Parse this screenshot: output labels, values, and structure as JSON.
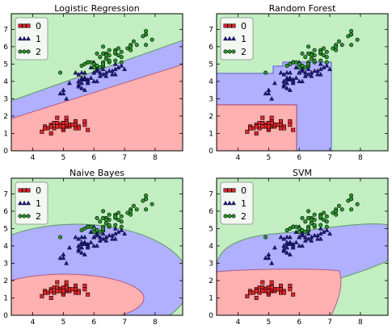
{
  "chart_data": [
    {
      "type": "scatter",
      "title": "Logistic Regression",
      "xlim": [
        3.3,
        8.9
      ],
      "ylim": [
        0,
        7.9
      ],
      "xticks": [
        "4",
        "5",
        "6",
        "7",
        "8"
      ],
      "yticks": [
        "0",
        "1",
        "2",
        "3",
        "4",
        "5",
        "6",
        "7"
      ],
      "legend": {
        "position": "top-left",
        "entries": [
          "0",
          "1",
          "2"
        ]
      },
      "decision_regions": [
        "linear boundaries"
      ]
    },
    {
      "type": "scatter",
      "title": "Random Forest",
      "xlim": [
        3.3,
        8.9
      ],
      "ylim": [
        0,
        7.9
      ],
      "xticks": [
        "4",
        "5",
        "6",
        "7",
        "8"
      ],
      "yticks": [
        "0",
        "1",
        "2",
        "3",
        "4",
        "5",
        "6",
        "7"
      ],
      "legend": {
        "position": "top-left",
        "entries": [
          "0",
          "1",
          "2"
        ]
      },
      "decision_regions": [
        "axis-aligned boxes"
      ]
    },
    {
      "type": "scatter",
      "title": "Naive Bayes",
      "xlim": [
        3.3,
        8.9
      ],
      "ylim": [
        0,
        7.9
      ],
      "xticks": [
        "4",
        "5",
        "6",
        "7",
        "8"
      ],
      "yticks": [
        "0",
        "1",
        "2",
        "3",
        "4",
        "5",
        "6",
        "7"
      ],
      "legend": {
        "position": "top-left",
        "entries": [
          "0",
          "1",
          "2"
        ]
      },
      "decision_regions": [
        "quadratic boundaries"
      ]
    },
    {
      "type": "scatter",
      "title": "SVM",
      "xlim": [
        3.3,
        8.9
      ],
      "ylim": [
        0,
        7.9
      ],
      "xticks": [
        "4",
        "5",
        "6",
        "7",
        "8"
      ],
      "yticks": [
        "0",
        "1",
        "2",
        "3",
        "4",
        "5",
        "6",
        "7"
      ],
      "legend": {
        "position": "top-left",
        "entries": [
          "0",
          "1",
          "2"
        ]
      },
      "decision_regions": [
        "rbf boundaries"
      ]
    }
  ],
  "series": [
    {
      "label": "0",
      "marker": "square",
      "color": "#e8262a",
      "points": [
        [
          5.1,
          1.4
        ],
        [
          4.9,
          1.4
        ],
        [
          4.7,
          1.3
        ],
        [
          4.6,
          1.5
        ],
        [
          5.0,
          1.4
        ],
        [
          5.4,
          1.7
        ],
        [
          4.6,
          1.4
        ],
        [
          5.0,
          1.5
        ],
        [
          4.4,
          1.4
        ],
        [
          4.9,
          1.5
        ],
        [
          5.4,
          1.5
        ],
        [
          4.8,
          1.6
        ],
        [
          4.8,
          1.4
        ],
        [
          4.3,
          1.1
        ],
        [
          5.8,
          1.2
        ],
        [
          5.7,
          1.5
        ],
        [
          5.4,
          1.3
        ],
        [
          5.1,
          1.4
        ],
        [
          5.7,
          1.7
        ],
        [
          5.1,
          1.5
        ],
        [
          5.4,
          1.7
        ],
        [
          5.1,
          1.5
        ],
        [
          4.6,
          1.0
        ],
        [
          5.1,
          1.7
        ],
        [
          4.8,
          1.9
        ],
        [
          5.0,
          1.6
        ],
        [
          5.0,
          1.6
        ],
        [
          5.2,
          1.5
        ],
        [
          5.2,
          1.4
        ],
        [
          4.7,
          1.6
        ],
        [
          4.8,
          1.6
        ],
        [
          5.4,
          1.5
        ],
        [
          5.2,
          1.5
        ],
        [
          5.5,
          1.4
        ],
        [
          4.9,
          1.5
        ],
        [
          5.0,
          1.2
        ],
        [
          5.5,
          1.3
        ],
        [
          4.9,
          1.4
        ],
        [
          4.4,
          1.3
        ],
        [
          5.1,
          1.5
        ],
        [
          5.0,
          1.3
        ],
        [
          4.5,
          1.3
        ],
        [
          4.4,
          1.3
        ],
        [
          5.0,
          1.6
        ],
        [
          5.1,
          1.9
        ],
        [
          4.8,
          1.4
        ],
        [
          5.1,
          1.6
        ],
        [
          4.6,
          1.4
        ],
        [
          5.3,
          1.5
        ],
        [
          5.0,
          1.4
        ]
      ]
    },
    {
      "label": "1",
      "marker": "triangle",
      "color": "#1e1a8a",
      "points": [
        [
          7.0,
          4.7
        ],
        [
          6.4,
          4.5
        ],
        [
          6.9,
          4.9
        ],
        [
          5.5,
          4.0
        ],
        [
          6.5,
          4.6
        ],
        [
          5.7,
          4.5
        ],
        [
          6.3,
          4.7
        ],
        [
          4.9,
          3.3
        ],
        [
          6.6,
          4.6
        ],
        [
          5.2,
          3.9
        ],
        [
          5.0,
          3.5
        ],
        [
          5.9,
          4.2
        ],
        [
          6.0,
          4.0
        ],
        [
          6.1,
          4.7
        ],
        [
          5.6,
          3.6
        ],
        [
          6.7,
          4.4
        ],
        [
          5.6,
          4.5
        ],
        [
          5.8,
          4.1
        ],
        [
          6.2,
          4.5
        ],
        [
          5.6,
          3.9
        ],
        [
          5.9,
          4.8
        ],
        [
          6.1,
          4.0
        ],
        [
          6.3,
          4.9
        ],
        [
          6.1,
          4.7
        ],
        [
          6.4,
          4.3
        ],
        [
          6.6,
          4.4
        ],
        [
          6.8,
          4.8
        ],
        [
          6.7,
          5.0
        ],
        [
          6.0,
          4.5
        ],
        [
          5.7,
          3.5
        ],
        [
          5.5,
          3.8
        ],
        [
          5.5,
          3.7
        ],
        [
          5.8,
          3.9
        ],
        [
          6.0,
          5.1
        ],
        [
          5.4,
          4.5
        ],
        [
          6.0,
          4.5
        ],
        [
          6.7,
          4.7
        ],
        [
          6.3,
          4.4
        ],
        [
          5.6,
          4.1
        ],
        [
          5.5,
          4.0
        ],
        [
          5.5,
          4.4
        ],
        [
          6.1,
          4.6
        ],
        [
          5.8,
          4.0
        ],
        [
          5.0,
          3.3
        ],
        [
          5.6,
          4.2
        ],
        [
          5.7,
          4.2
        ],
        [
          5.7,
          4.2
        ],
        [
          6.2,
          4.3
        ],
        [
          5.1,
          3.0
        ],
        [
          5.7,
          4.1
        ]
      ]
    },
    {
      "label": "2",
      "marker": "circle",
      "color": "#2a9a2a",
      "points": [
        [
          6.3,
          6.0
        ],
        [
          5.8,
          5.1
        ],
        [
          7.1,
          5.9
        ],
        [
          6.3,
          5.6
        ],
        [
          6.5,
          5.8
        ],
        [
          7.6,
          6.6
        ],
        [
          4.9,
          4.5
        ],
        [
          7.3,
          6.3
        ],
        [
          6.7,
          5.8
        ],
        [
          7.2,
          6.1
        ],
        [
          6.5,
          5.1
        ],
        [
          6.4,
          5.3
        ],
        [
          6.8,
          5.5
        ],
        [
          5.7,
          5.0
        ],
        [
          5.8,
          5.1
        ],
        [
          6.4,
          5.3
        ],
        [
          6.5,
          5.5
        ],
        [
          7.7,
          6.7
        ],
        [
          7.7,
          6.9
        ],
        [
          6.0,
          5.0
        ],
        [
          6.9,
          5.7
        ],
        [
          5.6,
          4.9
        ],
        [
          7.7,
          6.7
        ],
        [
          6.3,
          4.9
        ],
        [
          6.7,
          5.7
        ],
        [
          7.2,
          6.0
        ],
        [
          6.2,
          4.8
        ],
        [
          6.1,
          4.9
        ],
        [
          6.4,
          5.6
        ],
        [
          7.2,
          5.8
        ],
        [
          7.4,
          6.1
        ],
        [
          7.9,
          6.4
        ],
        [
          6.4,
          5.6
        ],
        [
          6.3,
          5.1
        ],
        [
          6.1,
          5.6
        ],
        [
          7.7,
          6.1
        ],
        [
          6.3,
          5.6
        ],
        [
          6.4,
          5.5
        ],
        [
          6.0,
          4.8
        ],
        [
          6.9,
          5.4
        ],
        [
          6.7,
          5.6
        ],
        [
          6.9,
          5.1
        ],
        [
          5.8,
          5.1
        ],
        [
          6.8,
          5.9
        ],
        [
          6.7,
          5.7
        ],
        [
          6.7,
          5.2
        ],
        [
          6.3,
          5.0
        ],
        [
          6.5,
          5.2
        ],
        [
          6.2,
          5.4
        ],
        [
          5.9,
          5.1
        ]
      ]
    }
  ],
  "colors": {
    "region_0": "#ffb0b0",
    "region_1": "#b0b0ff",
    "region_2": "#c2eec2",
    "boundary": "#5a5ad0",
    "legend_bg": "#f3f8f3"
  }
}
